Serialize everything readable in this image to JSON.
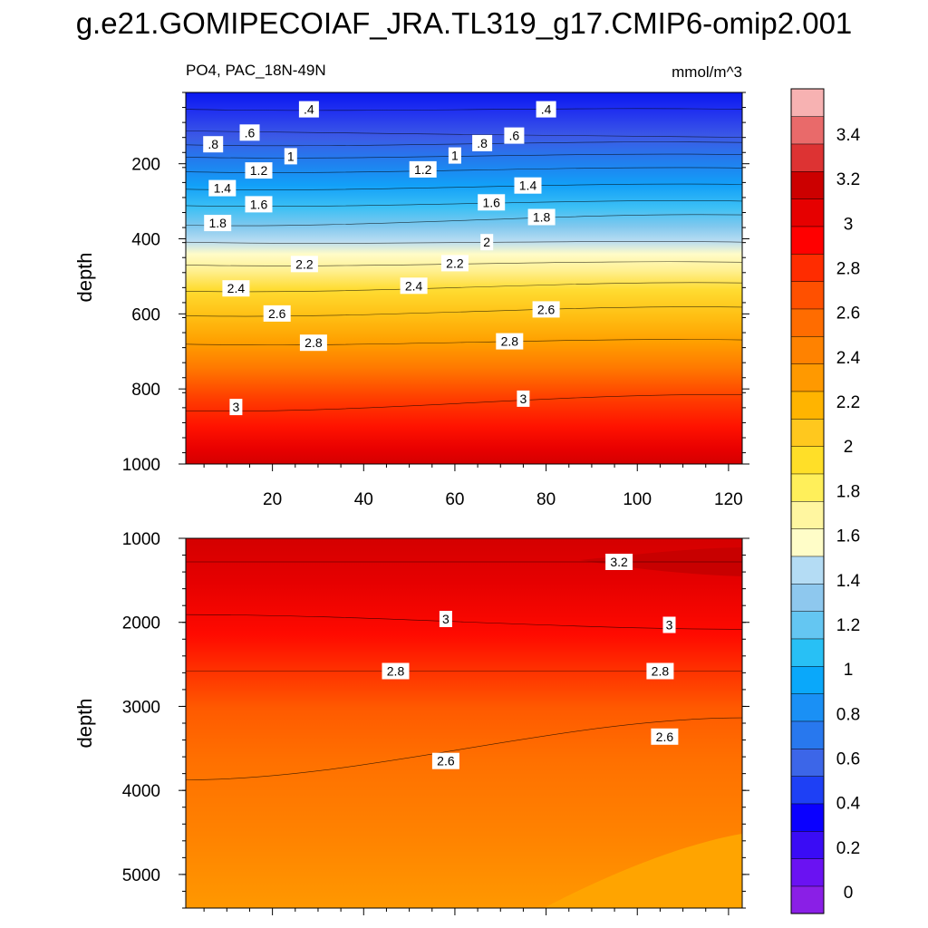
{
  "title": "g.e21.GOMIPECOIAF_JRA.TL319_g17.CMIP6-omip2.001",
  "panel_subtitle_left": "PO4, PAC_18N-49N",
  "panel_subtitle_right": "mmol/m^3",
  "chart_data": [
    {
      "type": "heatmap",
      "panel": "upper",
      "ylabel": "depth",
      "xlabel": "",
      "xlim": [
        1,
        123
      ],
      "ylim": [
        1000,
        10
      ],
      "x_ticks": [
        "20",
        "40",
        "60",
        "80",
        "100",
        "120"
      ],
      "y_ticks": [
        "200",
        "400",
        "600",
        "800",
        "1000"
      ],
      "contour_labels": [
        {
          "text": ".4",
          "x": 28,
          "y": 55
        },
        {
          "text": ".4",
          "x": 80,
          "y": 55
        },
        {
          "text": ".6",
          "x": 15,
          "y": 117
        },
        {
          "text": ".6",
          "x": 73,
          "y": 125
        },
        {
          "text": ".8",
          "x": 7,
          "y": 148
        },
        {
          "text": ".8",
          "x": 66,
          "y": 145
        },
        {
          "text": "1",
          "x": 24,
          "y": 180
        },
        {
          "text": "1",
          "x": 60,
          "y": 178
        },
        {
          "text": "1.2",
          "x": 17,
          "y": 218
        },
        {
          "text": "1.2",
          "x": 53,
          "y": 215
        },
        {
          "text": "1.4",
          "x": 9,
          "y": 265
        },
        {
          "text": "1.4",
          "x": 76,
          "y": 258
        },
        {
          "text": "1.6",
          "x": 17,
          "y": 308
        },
        {
          "text": "1.6",
          "x": 68,
          "y": 303
        },
        {
          "text": "1.8",
          "x": 8,
          "y": 358
        },
        {
          "text": "1.8",
          "x": 79,
          "y": 342
        },
        {
          "text": "2",
          "x": 67,
          "y": 409
        },
        {
          "text": "2.2",
          "x": 27,
          "y": 467
        },
        {
          "text": "2.2",
          "x": 60,
          "y": 465
        },
        {
          "text": "2.4",
          "x": 12,
          "y": 532
        },
        {
          "text": "2.4",
          "x": 51,
          "y": 525
        },
        {
          "text": "2.6",
          "x": 21,
          "y": 599
        },
        {
          "text": "2.6",
          "x": 80,
          "y": 588
        },
        {
          "text": "2.8",
          "x": 29,
          "y": 677
        },
        {
          "text": "2.8",
          "x": 72,
          "y": 673
        },
        {
          "text": "3",
          "x": 12,
          "y": 848
        },
        {
          "text": "3",
          "x": 75,
          "y": 826
        }
      ]
    },
    {
      "type": "heatmap",
      "panel": "lower",
      "ylabel": "depth",
      "xlabel": "",
      "xlim": [
        1,
        123
      ],
      "ylim": [
        5400,
        1000
      ],
      "y_ticks": [
        "1000",
        "2000",
        "3000",
        "4000",
        "5000"
      ],
      "contour_labels": [
        {
          "text": "3.2",
          "x": 96,
          "y": 1280
        },
        {
          "text": "3",
          "x": 58,
          "y": 1960
        },
        {
          "text": "3",
          "x": 107,
          "y": 2030
        },
        {
          "text": "2.8",
          "x": 47,
          "y": 2580
        },
        {
          "text": "2.8",
          "x": 105,
          "y": 2580
        },
        {
          "text": "2.6",
          "x": 58,
          "y": 3650
        },
        {
          "text": "2.6",
          "x": 106,
          "y": 3360
        }
      ]
    }
  ],
  "colorbar": {
    "labels": [
      "3.4",
      "3.2",
      "3",
      "2.8",
      "2.6",
      "2.4",
      "2.2",
      "2",
      "1.8",
      "1.6",
      "1.4",
      "1.2",
      "1",
      "0.8",
      "0.6",
      "0.4",
      "0.2",
      "0"
    ],
    "colors_bottom_to_top": [
      "#8a1fe6",
      "#6a12f2",
      "#3a0cf5",
      "#0a00ff",
      "#1e40f5",
      "#3c66e8",
      "#2878ee",
      "#1a90f5",
      "#0aa8fa",
      "#28c0f5",
      "#64c6f2",
      "#8ec8ee",
      "#b4dcf4",
      "#fffdc8",
      "#fff6a0",
      "#ffef5a",
      "#ffdf28",
      "#ffc81e",
      "#ffb400",
      "#ff9900",
      "#ff8200",
      "#ff6c00",
      "#ff5000",
      "#ff2c00",
      "#ff0000",
      "#e60000",
      "#cc0000",
      "#dd3333",
      "#e96a6a",
      "#f7b2b2"
    ]
  }
}
